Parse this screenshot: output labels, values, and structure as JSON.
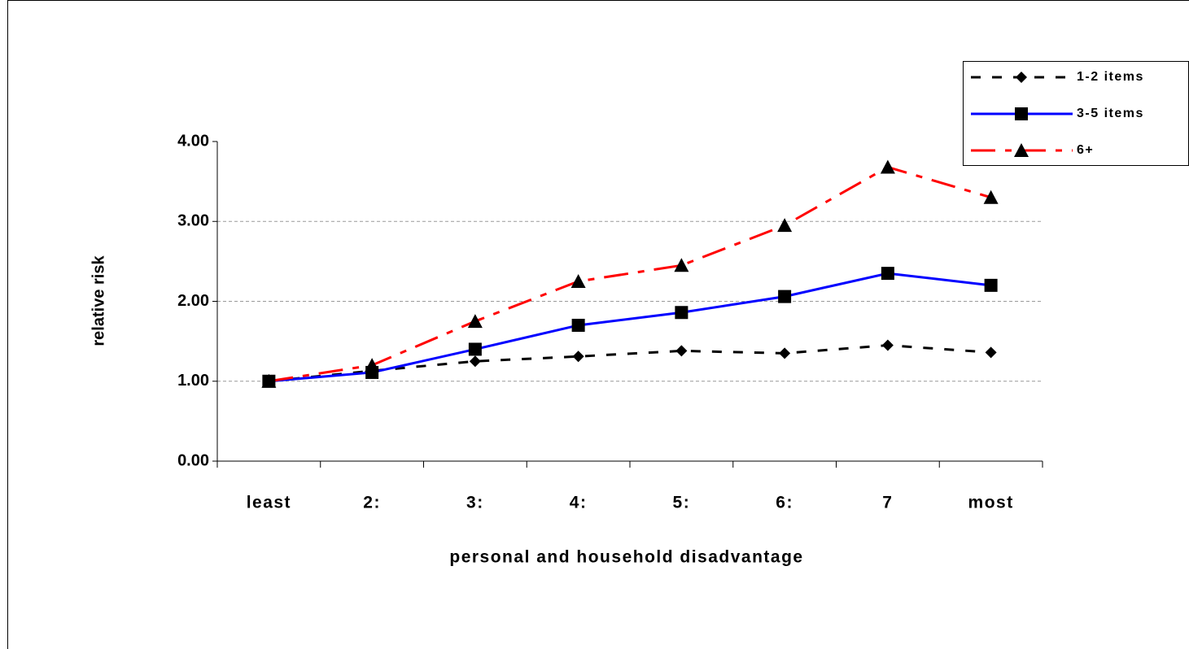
{
  "chart_data": {
    "type": "line",
    "xlabel": "personal and household disadvantage",
    "ylabel": "relative risk",
    "categories": [
      "least",
      "2:",
      "3:",
      "4:",
      "5:",
      "6:",
      "7",
      "most"
    ],
    "series": [
      {
        "name": "1-2 items",
        "color": "#000000",
        "marker": "diamond",
        "line_style": "dashed",
        "values": [
          1.0,
          1.13,
          1.25,
          1.31,
          1.38,
          1.35,
          1.45,
          1.36
        ]
      },
      {
        "name": "3-5 items",
        "color": "#0000ff",
        "marker": "square",
        "line_style": "solid",
        "values": [
          1.0,
          1.11,
          1.4,
          1.7,
          1.86,
          2.06,
          2.35,
          2.2
        ]
      },
      {
        "name": "6+",
        "color": "#ff0000",
        "marker": "triangle",
        "line_style": "dashdot",
        "values": [
          1.0,
          1.2,
          1.75,
          2.25,
          2.45,
          2.95,
          3.68,
          3.3
        ]
      }
    ],
    "ylim": [
      0,
      4
    ],
    "yticks": [
      {
        "value": 0,
        "label": "0.00"
      },
      {
        "value": 1,
        "label": "1.00"
      },
      {
        "value": 2,
        "label": "2.00"
      },
      {
        "value": 3,
        "label": "3.00"
      },
      {
        "value": 4,
        "label": "4.00"
      }
    ],
    "grid": true,
    "legend": "upper right"
  }
}
